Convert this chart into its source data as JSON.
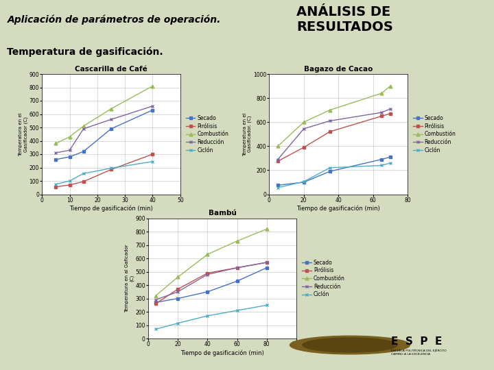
{
  "bg_color": "#d4dbbe",
  "header_bg": "#c8d4a8",
  "title_main": "ANÁLISIS DE\nRESULTADOS",
  "subtitle_left": "Aplicación de parámetros de operación.",
  "section_title": "Temperatura de gasificación.",
  "xlabel": "Tiempo de gasificación (min)",
  "ylabel_casc": "Temperatura en el\nGasificador (C)",
  "ylabel_bag": "Temperatura en el\nGasificador. (C)",
  "ylabel_bamb": "Temperatura en al Gaficador\n(C)",
  "series_names": [
    "Secado",
    "Pirólisis",
    "Combustión",
    "Reducción",
    "Ciclón"
  ],
  "series_colors": [
    "#4472c4",
    "#c0504d",
    "#9bbb59",
    "#8064a2",
    "#4bacc6"
  ],
  "marker_styles": [
    "s",
    "s",
    "^",
    "x",
    "x"
  ],
  "cascarilla": {
    "title": "Cascarilla de Café",
    "x": [
      5,
      10,
      15,
      25,
      40
    ],
    "Secado": [
      260,
      280,
      320,
      490,
      630
    ],
    "Pirólisis": [
      55,
      70,
      95,
      185,
      300
    ],
    "Combustión": [
      380,
      430,
      510,
      640,
      810
    ],
    "Reducción": [
      310,
      330,
      490,
      560,
      660
    ],
    "Ciclón": [
      75,
      100,
      155,
      195,
      245
    ],
    "xlim": [
      0,
      50
    ],
    "ylim": [
      0,
      900
    ],
    "yticks": [
      0,
      100,
      200,
      300,
      400,
      500,
      600,
      700,
      800,
      900
    ],
    "xticks": [
      0,
      10,
      20,
      30,
      40,
      50
    ]
  },
  "bagazo": {
    "title": "Bagazo de Cacao",
    "x": [
      5,
      20,
      35,
      65,
      70
    ],
    "Secado": [
      75,
      100,
      190,
      290,
      310
    ],
    "Pirólisis": [
      275,
      390,
      520,
      650,
      670
    ],
    "Combustión": [
      400,
      600,
      700,
      840,
      900
    ],
    "Reducción": [
      290,
      545,
      610,
      680,
      710
    ],
    "Ciclón": [
      55,
      105,
      220,
      240,
      260
    ],
    "xlim": [
      0,
      80
    ],
    "ylim": [
      0,
      1000
    ],
    "yticks": [
      0,
      200,
      400,
      600,
      800,
      1000
    ],
    "xticks": [
      0,
      20,
      40,
      60,
      80
    ]
  },
  "bambu": {
    "title": "Bambú",
    "x": [
      5,
      20,
      40,
      60,
      80
    ],
    "Secado": [
      270,
      300,
      350,
      430,
      530
    ],
    "Pirólisis": [
      260,
      370,
      490,
      530,
      570
    ],
    "Combustión": [
      320,
      460,
      630,
      730,
      820
    ],
    "Reducción": [
      290,
      350,
      480,
      530,
      570
    ],
    "Ciclón": [
      70,
      115,
      170,
      210,
      250
    ],
    "xlim": [
      0,
      100
    ],
    "ylim": [
      0,
      900
    ],
    "yticks": [
      0,
      100,
      200,
      300,
      400,
      500,
      600,
      700,
      800,
      900
    ],
    "xticks": [
      0,
      20,
      40,
      60,
      80,
      100
    ]
  },
  "footer_green": "#5a8a2a",
  "footer_red": "#aa2222",
  "espe_text": "E  S  P  E",
  "espe_sub": "ESCUELA POLITÉCNICA DEL EJÉRCITO\nCAMINO A LA EXCELENCIA"
}
